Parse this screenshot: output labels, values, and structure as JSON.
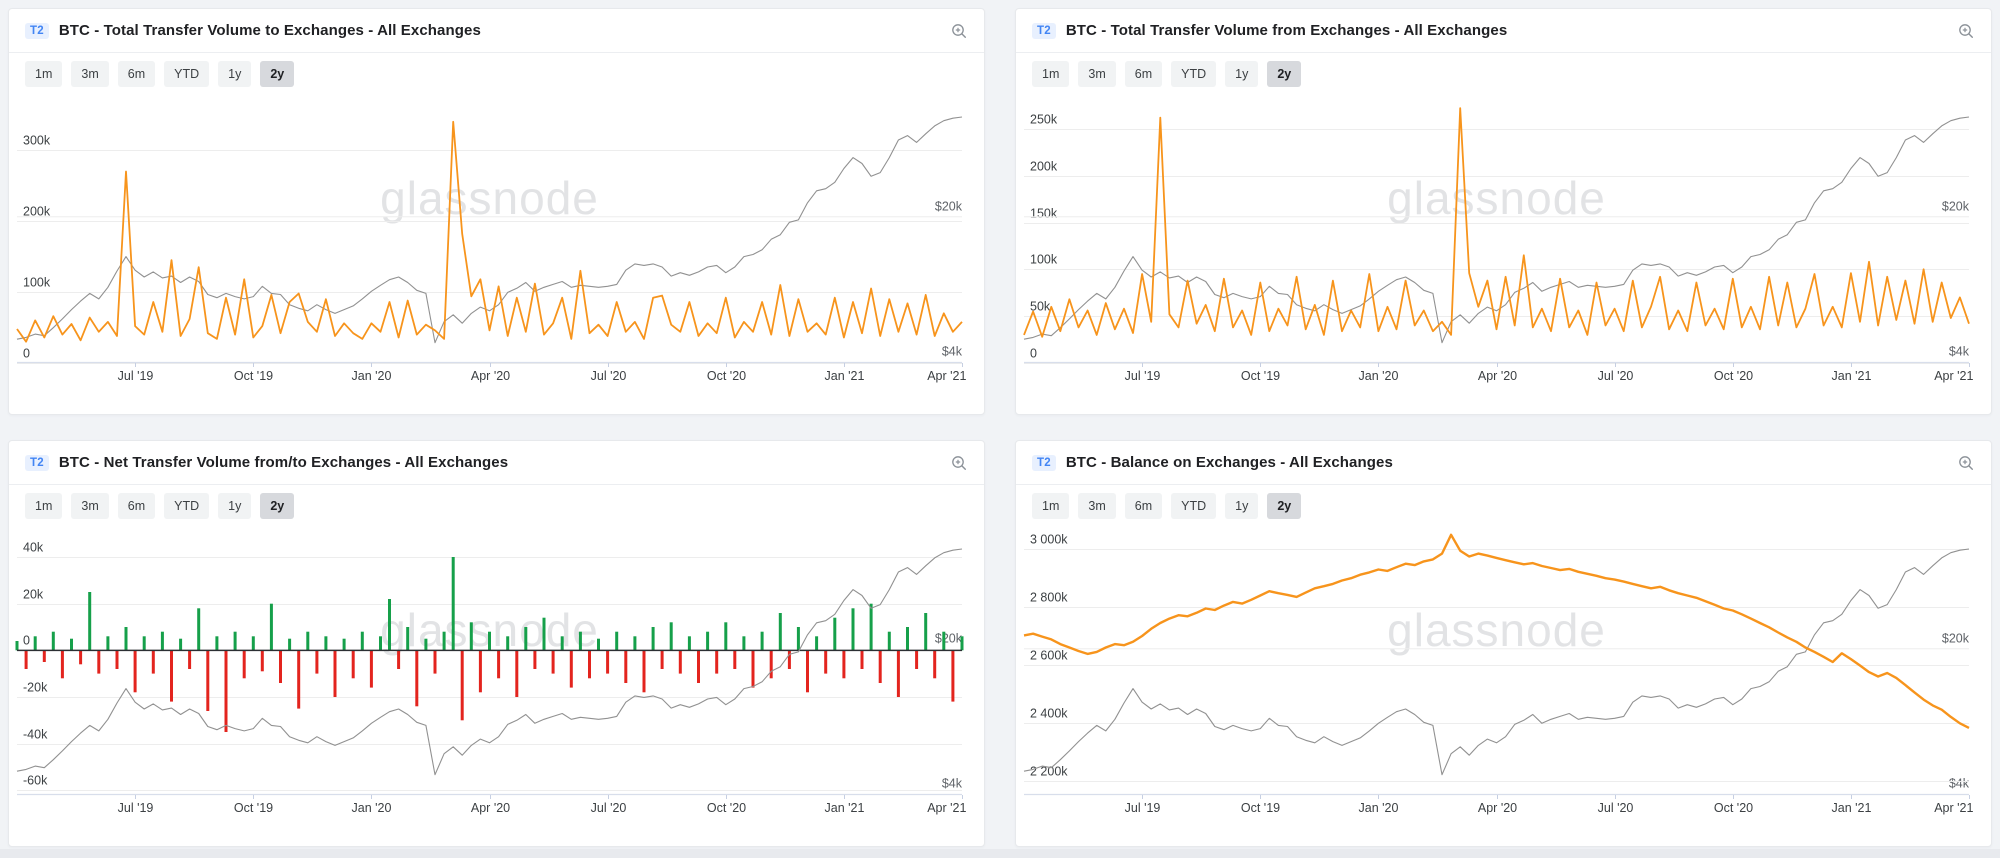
{
  "page": {
    "watermark": "glassnode",
    "background": "#f1f3f6"
  },
  "badge": "T2",
  "colors": {
    "orange": "#f7941c",
    "price": "#919191",
    "green": "#16a04a",
    "red": "#e3241e",
    "grid": "#ededed",
    "axis": "#d8deeb",
    "tick": "#c6cfe2",
    "zero_line": "#2b2f33",
    "badge_bg": "#e8f0fe",
    "badge_text": "#4285f4",
    "right_label": "#5f6368"
  },
  "range_buttons": {
    "labels": [
      "1m",
      "3m",
      "6m",
      "YTD",
      "1y",
      "2y"
    ],
    "selected": "2y"
  },
  "x_axis": {
    "total_weeks": 104,
    "ticks": [
      {
        "week": 13,
        "label": "Jul '19"
      },
      {
        "week": 26,
        "label": "Oct '19"
      },
      {
        "week": 39,
        "label": "Jan '20"
      },
      {
        "week": 52,
        "label": "Apr '20"
      },
      {
        "week": 65,
        "label": "Jul '20"
      },
      {
        "week": 78,
        "label": "Oct '20"
      },
      {
        "week": 91,
        "label": "Jan '21"
      },
      {
        "week": 104,
        "label": "Apr '21"
      }
    ]
  },
  "price_axis": {
    "upper_label": "$20k",
    "lower_label": "$4k",
    "p20_frac": 0.55,
    "scale": "log",
    "base_k": 4
  },
  "price_series": {
    "name": "btc-price-usd",
    "unit": "$k",
    "values": [
      5.2,
      5.3,
      5.5,
      5.4,
      5.9,
      6.5,
      7.2,
      7.9,
      8.6,
      8.1,
      9.2,
      11.0,
      12.9,
      11.1,
      10.3,
      10.9,
      10.2,
      10.4,
      9.7,
      10.3,
      9.8,
      8.5,
      8.2,
      8.6,
      8.3,
      8.1,
      8.3,
      9.3,
      8.6,
      8.5,
      7.6,
      7.3,
      7.1,
      7.6,
      7.2,
      6.9,
      7.2,
      7.5,
      8.1,
      8.8,
      9.4,
      10.0,
      10.3,
      9.7,
      8.9,
      8.6,
      5.0,
      6.3,
      6.8,
      6.2,
      6.9,
      7.4,
      7.1,
      7.6,
      8.7,
      9.1,
      9.7,
      8.8,
      9.2,
      9.5,
      9.8,
      9.2,
      9.4,
      9.3,
      9.2,
      9.3,
      9.5,
      11.1,
      11.9,
      11.7,
      11.9,
      11.5,
      10.4,
      10.8,
      10.5,
      10.9,
      11.5,
      11.7,
      10.8,
      11.5,
      12.9,
      13.2,
      13.9,
      15.6,
      16.4,
      18.8,
      19.3,
      23.3,
      26.6,
      27.2,
      29.2,
      34.0,
      38.3,
      35.9,
      31.2,
      32.5,
      38.3,
      46.5,
      48.8,
      45.3,
      49.8,
      54.3,
      57.5,
      59.1,
      59.9
    ]
  },
  "chart_data": [
    {
      "type": "line",
      "title": "BTC - Total Transfer Volume to Exchanges - All Exchanges",
      "unit": "BTC (thousands)",
      "y_axis": {
        "ylim": [
          0,
          375
        ],
        "ticks": [
          {
            "v": 0,
            "label": "0"
          },
          {
            "v": 100,
            "label": "100k"
          },
          {
            "v": 200,
            "label": "200k"
          },
          {
            "v": 300,
            "label": "300k"
          }
        ]
      },
      "series": [
        {
          "name": "transfer-volume-to-exchanges",
          "color_key": "orange",
          "values": [
            48,
            30,
            60,
            36,
            66,
            40,
            55,
            32,
            64,
            44,
            58,
            38,
            270,
            52,
            40,
            86,
            44,
            145,
            38,
            62,
            135,
            42,
            34,
            92,
            40,
            118,
            36,
            52,
            96,
            42,
            86,
            98,
            58,
            44,
            90,
            38,
            56,
            42,
            34,
            56,
            44,
            86,
            36,
            88,
            40,
            54,
            46,
            34,
            340,
            182,
            94,
            118,
            46,
            108,
            38,
            92,
            44,
            112,
            40,
            56,
            92,
            34,
            130,
            42,
            54,
            38,
            86,
            44,
            58,
            34,
            92,
            95,
            54,
            44,
            86,
            38,
            56,
            42,
            92,
            36,
            58,
            44,
            86,
            40,
            110,
            38,
            90,
            44,
            56,
            40,
            92,
            36,
            86,
            42,
            105,
            38,
            90,
            44,
            84,
            40,
            96,
            38,
            70,
            44,
            58
          ]
        }
      ]
    },
    {
      "type": "line",
      "title": "BTC - Total Transfer Volume from Exchanges - All Exchanges",
      "unit": "BTC (thousands)",
      "y_axis": {
        "ylim": [
          0,
          284
        ],
        "ticks": [
          {
            "v": 0,
            "label": "0"
          },
          {
            "v": 50,
            "label": "50k"
          },
          {
            "v": 100,
            "label": "100k"
          },
          {
            "v": 150,
            "label": "150k"
          },
          {
            "v": 200,
            "label": "200k"
          },
          {
            "v": 250,
            "label": "250k"
          }
        ]
      },
      "series": [
        {
          "name": "transfer-volume-from-exchanges",
          "color_key": "orange",
          "values": [
            30,
            55,
            28,
            60,
            34,
            68,
            38,
            56,
            30,
            64,
            36,
            58,
            32,
            95,
            44,
            262,
            52,
            38,
            88,
            42,
            62,
            34,
            90,
            38,
            56,
            30,
            86,
            34,
            58,
            40,
            92,
            36,
            62,
            30,
            88,
            34,
            56,
            38,
            95,
            34,
            60,
            36,
            88,
            40,
            56,
            34,
            44,
            30,
            272,
            96,
            60,
            88,
            36,
            92,
            40,
            115,
            38,
            58,
            34,
            90,
            38,
            56,
            30,
            86,
            40,
            58,
            34,
            88,
            38,
            60,
            92,
            36,
            56,
            34,
            86,
            40,
            58,
            36,
            90,
            38,
            60,
            36,
            92,
            40,
            86,
            38,
            58,
            95,
            40,
            60,
            38,
            96,
            44,
            108,
            40,
            92,
            46,
            88,
            42,
            100,
            44,
            86,
            48,
            70,
            42
          ]
        }
      ]
    },
    {
      "type": "bar",
      "title": "BTC - Net Transfer Volume from/to Exchanges - All Exchanges",
      "unit": "BTC (thousands)",
      "y_axis": {
        "ylim": [
          -62,
          52
        ],
        "ticks": [
          {
            "v": -60,
            "label": "-60k"
          },
          {
            "v": -40,
            "label": "-40k"
          },
          {
            "v": -20,
            "label": "-20k"
          },
          {
            "v": 0,
            "label": "0"
          },
          {
            "v": 20,
            "label": "20k"
          },
          {
            "v": 40,
            "label": "40k"
          }
        ]
      },
      "series": [
        {
          "name": "net-transfer-volume",
          "color_key_positive": "green",
          "color_key_negative": "red",
          "values": [
            4,
            -8,
            6,
            -5,
            8,
            -12,
            5,
            -6,
            25,
            -10,
            6,
            -8,
            10,
            -18,
            6,
            -10,
            8,
            -22,
            5,
            -8,
            18,
            -26,
            6,
            -35,
            8,
            -12,
            6,
            -9,
            20,
            -14,
            5,
            -25,
            8,
            -10,
            6,
            -20,
            5,
            -12,
            8,
            -16,
            6,
            22,
            -8,
            10,
            -24,
            5,
            -10,
            8,
            40,
            -30,
            12,
            -18,
            8,
            -12,
            6,
            -20,
            10,
            -8,
            14,
            -10,
            6,
            -16,
            8,
            -12,
            5,
            -10,
            8,
            -14,
            6,
            -18,
            10,
            -8,
            12,
            -10,
            6,
            -14,
            8,
            -10,
            12,
            -8,
            6,
            -16,
            8,
            -12,
            16,
            -8,
            10,
            -18,
            6,
            -10,
            14,
            -12,
            18,
            -8,
            20,
            -14,
            8,
            -20,
            10,
            -8,
            16,
            -12,
            8,
            -22,
            6
          ]
        }
      ]
    },
    {
      "type": "line",
      "title": "BTC - Balance on Exchanges - All Exchanges",
      "unit": "BTC (thousands)",
      "y_axis": {
        "ylim": [
          2150,
          3070
        ],
        "ticks": [
          {
            "v": 2200,
            "label": "2 200k"
          },
          {
            "v": 2400,
            "label": "2 400k"
          },
          {
            "v": 2600,
            "label": "2 600k"
          },
          {
            "v": 2800,
            "label": "2 800k"
          },
          {
            "v": 3000,
            "label": "3 000k"
          }
        ]
      },
      "series": [
        {
          "name": "balance-on-exchanges",
          "color_key": "orange",
          "values": [
            2702,
            2708,
            2698,
            2688,
            2672,
            2660,
            2648,
            2638,
            2645,
            2660,
            2672,
            2668,
            2680,
            2700,
            2725,
            2745,
            2760,
            2772,
            2768,
            2780,
            2795,
            2790,
            2805,
            2818,
            2812,
            2825,
            2840,
            2855,
            2848,
            2842,
            2835,
            2850,
            2865,
            2872,
            2880,
            2892,
            2900,
            2912,
            2920,
            2930,
            2925,
            2938,
            2950,
            2945,
            2958,
            2965,
            2985,
            3050,
            2995,
            2975,
            2985,
            2978,
            2970,
            2962,
            2955,
            2948,
            2952,
            2942,
            2935,
            2928,
            2932,
            2922,
            2915,
            2908,
            2900,
            2895,
            2888,
            2880,
            2872,
            2865,
            2870,
            2858,
            2848,
            2840,
            2832,
            2820,
            2808,
            2795,
            2788,
            2775,
            2760,
            2745,
            2730,
            2712,
            2695,
            2680,
            2660,
            2645,
            2628,
            2610,
            2640,
            2620,
            2598,
            2575,
            2560,
            2572,
            2555,
            2530,
            2505,
            2480,
            2460,
            2445,
            2420,
            2398,
            2382
          ]
        }
      ]
    }
  ]
}
